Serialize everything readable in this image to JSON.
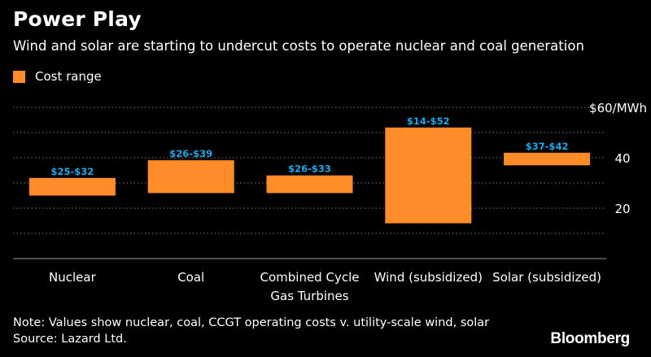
{
  "header": {
    "title": "Power Play",
    "subtitle": "Wind and solar are starting to undercut costs to operate nuclear and coal generation"
  },
  "footer": {
    "note": "Note: Values show nuclear, coal, CCGT operating costs v. utility-scale wind, solar",
    "source": "Source: Lazard Ltd.",
    "brand": "Bloomberg"
  },
  "colors": {
    "background": "#000000",
    "bar": "#ff8c28",
    "data_label": "#1fa8e8",
    "gridline": "#7a7a7a",
    "text": "#ffffff"
  },
  "chart_data": {
    "type": "floating-bar",
    "title": "Power Play",
    "subtitle": "Wind and solar are starting to undercut costs to operate nuclear and coal generation",
    "legend": [
      {
        "label": "Cost range",
        "color": "#ff8c28"
      }
    ],
    "unit_label": "$60/MWh",
    "ylim": [
      0,
      60
    ],
    "yticks": [
      20,
      40,
      60
    ],
    "ytick_labels": [
      "20",
      "40",
      "$60/MWh"
    ],
    "categories": [
      [
        "Nuclear"
      ],
      [
        "Coal"
      ],
      [
        "Combined Cycle",
        "Gas Turbines"
      ],
      [
        "Wind (subsidized)"
      ],
      [
        "Solar (subsidized)"
      ]
    ],
    "series": [
      {
        "name": "Cost range",
        "low": [
          25,
          26,
          26,
          14,
          37
        ],
        "high": [
          32,
          39,
          33,
          52,
          42
        ],
        "labels": [
          "$25-$32",
          "$26-$39",
          "$26-$33",
          "$14-$52",
          "$37-$42"
        ]
      }
    ]
  }
}
